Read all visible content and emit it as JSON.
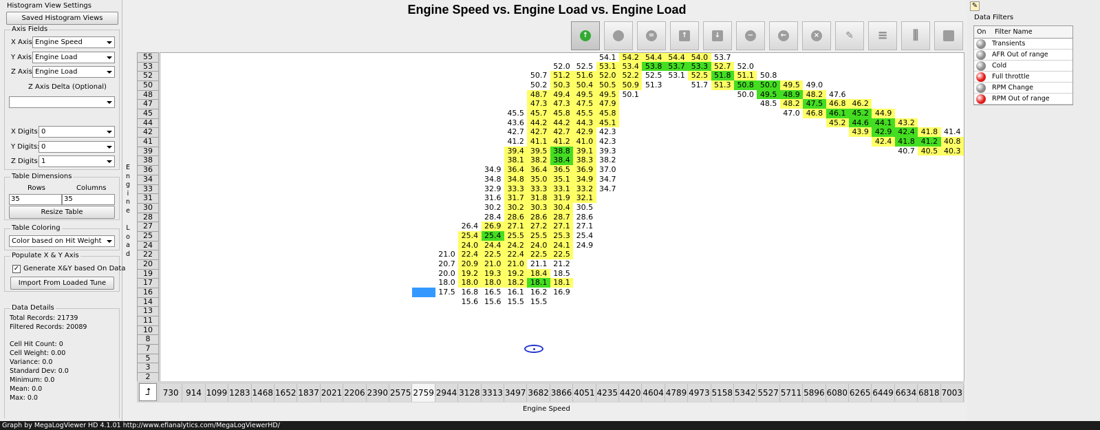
{
  "window": {
    "title": "Engine Speed vs. Engine Load vs. Engine Load"
  },
  "left_panel": {
    "title": "Histogram View Settings",
    "saved_views_button": "Saved Histogram Views",
    "axis_fields": {
      "title": "Axis Fields",
      "x_label": "X Axis:",
      "x_value": "Engine Speed",
      "y_label": "Y Axis:",
      "y_value": "Engine Load",
      "z_label": "Z Axis:",
      "z_value": "Engine Load",
      "z_delta_label": "Z Axis Delta (Optional)",
      "z_delta_value": ""
    },
    "digits": {
      "x_label": "X Digits:",
      "x_value": "0",
      "y_label": "Y Digits:",
      "y_value": "0",
      "z_label": "Z Digits:",
      "z_value": "1"
    },
    "table_dimensions": {
      "title": "Table Dimensions",
      "rows_label": "Rows",
      "columns_label": "Columns",
      "rows_value": "35",
      "columns_value": "35",
      "resize_button": "Resize Table"
    },
    "table_coloring": {
      "title": "Table Coloring",
      "value": "Color based on Hit Weight"
    },
    "populate": {
      "title": "Populate X & Y Axis",
      "checkbox_label": "Generate X&Y based On Data",
      "checked": true,
      "import_button": "Import From Loaded Tune"
    },
    "data_details": {
      "title": "Data Details",
      "total_records": "Total Records: 21739",
      "filtered_records": "Filtered Records: 20089",
      "cell_hit_count": "Cell Hit Count: 0",
      "cell_weight": "Cell Weight: 0.00",
      "variance": "Variance: 0.0",
      "std_dev": "Standard Dev: 0.0",
      "minimum": "Minimum: 0.0",
      "mean": "Mean: 0.0",
      "max": "Max: 0.0"
    }
  },
  "toolbar": {
    "icons": [
      "up-arrow-circle-icon",
      "circle-icon",
      "equals-circle-icon",
      "up-arrow-square-icon",
      "down-arrow-square-icon",
      "minus-circle-icon",
      "left-arrow-circle-icon",
      "x-circle-icon",
      "pencil-icon",
      "rows-icon",
      "columns-icon",
      "square-icon"
    ],
    "active_index": 0
  },
  "axes": {
    "y_label": "Engine Load",
    "x_label": "Engine Speed",
    "corner_icon": "axis-swap-icon"
  },
  "grid": {
    "x_labels": [
      "730",
      "914",
      "1099",
      "1283",
      "1468",
      "1652",
      "1837",
      "2021",
      "2206",
      "2390",
      "2575",
      "2759",
      "2944",
      "3128",
      "3313",
      "3497",
      "3682",
      "3866",
      "4051",
      "4235",
      "4420",
      "4604",
      "4789",
      "4973",
      "5158",
      "5342",
      "5527",
      "5711",
      "5896",
      "6080",
      "6265",
      "6449",
      "6634",
      "6818",
      "7003"
    ],
    "y_labels": [
      "55",
      "53",
      "52",
      "50",
      "48",
      "47",
      "45",
      "44",
      "42",
      "41",
      "39",
      "38",
      "36",
      "34",
      "33",
      "31",
      "30",
      "28",
      "27",
      "25",
      "24",
      "22",
      "20",
      "19",
      "17",
      "16",
      "14",
      "13",
      "11",
      "10",
      "8",
      "7",
      "5",
      "3",
      "2"
    ],
    "highlight_x_index": 11,
    "rows": [
      {
        "v": {
          "19": "54.1",
          "20": "54.2",
          "21": "54.4",
          "22": "54.4",
          "23": "54.0",
          "24": "53.7"
        },
        "c": {
          "20": "y",
          "21": "y",
          "22": "y",
          "23": "y"
        }
      },
      {
        "v": {
          "17": "52.0",
          "18": "52.5",
          "19": "53.1",
          "20": "53.4",
          "21": "53.8",
          "22": "53.7",
          "23": "53.3",
          "24": "52.7",
          "25": "52.0"
        },
        "c": {
          "19": "y",
          "20": "y",
          "21": "g",
          "22": "g",
          "23": "g",
          "24": "y"
        }
      },
      {
        "v": {
          "16": "50.7",
          "17": "51.2",
          "18": "51.6",
          "19": "52.0",
          "20": "52.2",
          "21": "52.5",
          "22": "53.1",
          "23": "52.5",
          "24": "51.8",
          "25": "51.1",
          "26": "50.8"
        },
        "c": {
          "17": "y",
          "18": "y",
          "19": "y",
          "20": "y",
          "23": "y",
          "24": "g",
          "25": "y"
        }
      },
      {
        "v": {
          "16": "50.2",
          "17": "50.3",
          "18": "50.4",
          "19": "50.5",
          "20": "50.9",
          "21": "51.3",
          "23": "51.7",
          "24": "51.3",
          "25": "50.8",
          "26": "50.0",
          "27": "49.5",
          "28": "49.0"
        },
        "c": {
          "17": "y",
          "18": "y",
          "19": "y",
          "20": "y",
          "24": "y",
          "25": "g",
          "26": "g",
          "27": "y"
        }
      },
      {
        "v": {
          "16": "48.7",
          "17": "49.4",
          "18": "49.5",
          "19": "49.5",
          "20": "50.1",
          "25": "50.0",
          "26": "49.5",
          "27": "48.9",
          "28": "48.2",
          "29": "47.6"
        },
        "c": {
          "16": "y",
          "17": "y",
          "18": "y",
          "19": "y",
          "26": "g",
          "27": "g",
          "28": "y"
        }
      },
      {
        "v": {
          "16": "47.3",
          "17": "47.3",
          "18": "47.5",
          "19": "47.9",
          "26": "48.5",
          "27": "48.2",
          "28": "47.5",
          "29": "46.8",
          "30": "46.2"
        },
        "c": {
          "16": "y",
          "17": "y",
          "18": "y",
          "19": "y",
          "27": "y",
          "28": "g",
          "29": "y",
          "30": "y"
        }
      },
      {
        "v": {
          "15": "45.5",
          "16": "45.7",
          "17": "45.8",
          "18": "45.5",
          "19": "45.8",
          "27": "47.0",
          "28": "46.8",
          "29": "46.1",
          "30": "45.2",
          "31": "44.9"
        },
        "c": {
          "16": "y",
          "17": "y",
          "18": "y",
          "19": "y",
          "28": "y",
          "29": "g",
          "30": "g",
          "31": "y"
        }
      },
      {
        "v": {
          "15": "43.6",
          "16": "44.2",
          "17": "44.2",
          "18": "44.3",
          "19": "45.1",
          "29": "45.2",
          "30": "44.6",
          "31": "44.1",
          "32": "43.2"
        },
        "c": {
          "16": "y",
          "17": "y",
          "18": "y",
          "19": "y",
          "29": "y",
          "30": "g",
          "31": "g",
          "32": "y"
        }
      },
      {
        "v": {
          "15": "42.7",
          "16": "42.7",
          "17": "42.7",
          "18": "42.9",
          "19": "42.3",
          "30": "43.9",
          "31": "42.9",
          "32": "42.4",
          "33": "41.8",
          "34": "41.4"
        },
        "c": {
          "16": "y",
          "17": "y",
          "18": "y",
          "30": "y",
          "31": "g",
          "32": "g",
          "33": "y"
        }
      },
      {
        "v": {
          "15": "41.2",
          "16": "41.1",
          "17": "41.2",
          "18": "41.0",
          "19": "42.3",
          "31": "42.4",
          "32": "41.8",
          "33": "41.2",
          "34": "40.8"
        },
        "c": {
          "16": "y",
          "17": "y",
          "18": "y",
          "31": "y",
          "32": "g",
          "33": "g",
          "34": "y"
        }
      },
      {
        "v": {
          "15": "39.4",
          "16": "39.5",
          "17": "38.8",
          "18": "39.1",
          "19": "39.3",
          "32": "40.7",
          "33": "40.5",
          "34": "40.3"
        },
        "c": {
          "15": "y",
          "16": "y",
          "17": "g",
          "18": "y",
          "33": "y",
          "34": "y"
        }
      },
      {
        "v": {
          "15": "38.1",
          "16": "38.2",
          "17": "38.4",
          "18": "38.3",
          "19": "38.2"
        },
        "c": {
          "15": "y",
          "16": "y",
          "17": "g",
          "18": "y"
        }
      },
      {
        "v": {
          "14": "34.9",
          "15": "36.4",
          "16": "36.4",
          "17": "36.5",
          "18": "36.9",
          "19": "37.0"
        },
        "c": {
          "15": "y",
          "16": "y",
          "17": "y",
          "18": "y"
        }
      },
      {
        "v": {
          "14": "34.8",
          "15": "34.8",
          "16": "35.0",
          "17": "35.1",
          "18": "34.9",
          "19": "34.7"
        },
        "c": {
          "15": "y",
          "16": "y",
          "17": "y",
          "18": "y"
        }
      },
      {
        "v": {
          "14": "32.9",
          "15": "33.3",
          "16": "33.3",
          "17": "33.1",
          "18": "33.2",
          "19": "34.7"
        },
        "c": {
          "15": "y",
          "16": "y",
          "17": "y",
          "18": "y"
        }
      },
      {
        "v": {
          "14": "31.6",
          "15": "31.7",
          "16": "31.8",
          "17": "31.9",
          "18": "32.1"
        },
        "c": {
          "15": "y",
          "16": "y",
          "17": "y",
          "18": "y"
        }
      },
      {
        "v": {
          "14": "30.2",
          "15": "30.2",
          "16": "30.3",
          "17": "30.4",
          "18": "30.5"
        },
        "c": {
          "15": "y",
          "16": "y",
          "17": "y"
        }
      },
      {
        "v": {
          "14": "28.4",
          "15": "28.6",
          "16": "28.6",
          "17": "28.7",
          "18": "28.6"
        },
        "c": {
          "15": "y",
          "16": "y",
          "17": "y"
        }
      },
      {
        "v": {
          "13": "26.4",
          "14": "26.9",
          "15": "27.1",
          "16": "27.2",
          "17": "27.1",
          "18": "27.1"
        },
        "c": {
          "14": "y",
          "15": "y",
          "16": "y",
          "17": "y"
        }
      },
      {
        "v": {
          "13": "25.4",
          "14": "25.4",
          "15": "25.5",
          "16": "25.5",
          "17": "25.3",
          "18": "25.4"
        },
        "c": {
          "13": "y",
          "14": "g",
          "15": "y",
          "16": "y",
          "17": "y"
        }
      },
      {
        "v": {
          "13": "24.0",
          "14": "24.4",
          "15": "24.2",
          "16": "24.0",
          "17": "24.1",
          "18": "24.9"
        },
        "c": {
          "13": "y",
          "14": "y",
          "15": "y",
          "16": "y",
          "17": "y"
        }
      },
      {
        "v": {
          "12": "21.0",
          "13": "22.4",
          "14": "22.5",
          "15": "22.4",
          "16": "22.5",
          "17": "22.5"
        },
        "c": {
          "13": "y",
          "14": "y",
          "15": "y",
          "16": "y",
          "17": "y"
        }
      },
      {
        "v": {
          "12": "20.7",
          "13": "20.9",
          "14": "21.0",
          "15": "21.0",
          "16": "21.1",
          "17": "21.2"
        },
        "c": {
          "13": "y",
          "14": "y",
          "15": "y"
        }
      },
      {
        "v": {
          "12": "20.0",
          "13": "19.2",
          "14": "19.3",
          "15": "19.2",
          "16": "18.4",
          "17": "18.5"
        },
        "c": {
          "13": "y",
          "14": "y",
          "15": "y",
          "16": "y"
        }
      },
      {
        "v": {
          "12": "18.0",
          "13": "18.0",
          "14": "18.0",
          "15": "18.2",
          "16": "18.1",
          "17": "18.1"
        },
        "c": {
          "13": "y",
          "14": "y",
          "15": "y",
          "16": "g",
          "17": "y"
        }
      },
      {
        "v": {
          "12": "17.5",
          "13": "16.8",
          "14": "16.5",
          "15": "16.1",
          "16": "16.2",
          "17": "16.9"
        },
        "c": {
          "11": "b"
        }
      },
      {
        "v": {
          "13": "15.6",
          "14": "15.6",
          "15": "15.5",
          "16": "15.5"
        },
        "c": {}
      },
      {
        "v": {},
        "c": {}
      },
      {
        "v": {},
        "c": {}
      },
      {
        "v": {},
        "c": {}
      },
      {
        "v": {},
        "c": {}
      },
      {
        "v": {},
        "c": {}
      },
      {
        "v": {},
        "c": {}
      },
      {
        "v": {},
        "c": {}
      },
      {
        "v": {},
        "c": {}
      }
    ],
    "colors": {
      "y": "#ffff66",
      "g": "#44dd22",
      "b": "#3399ff",
      "empty": "#ffffff"
    }
  },
  "filters": {
    "title": "Data Filters",
    "col_on": "On",
    "col_name": "Filter Name",
    "items": [
      {
        "name": "Transients",
        "on": false
      },
      {
        "name": "AFR Out of range",
        "on": false
      },
      {
        "name": "Cold",
        "on": false
      },
      {
        "name": "Full throttle",
        "on": true
      },
      {
        "name": "RPM Change",
        "on": false
      },
      {
        "name": "RPM Out of range",
        "on": true
      }
    ],
    "on_color": "#e21a1a",
    "off_color": "#8a8a8a"
  },
  "status_bar": {
    "text": "Graph by MegaLogViewer HD 4.1.01 http://www.efianalytics.com/MegaLogViewerHD/"
  }
}
